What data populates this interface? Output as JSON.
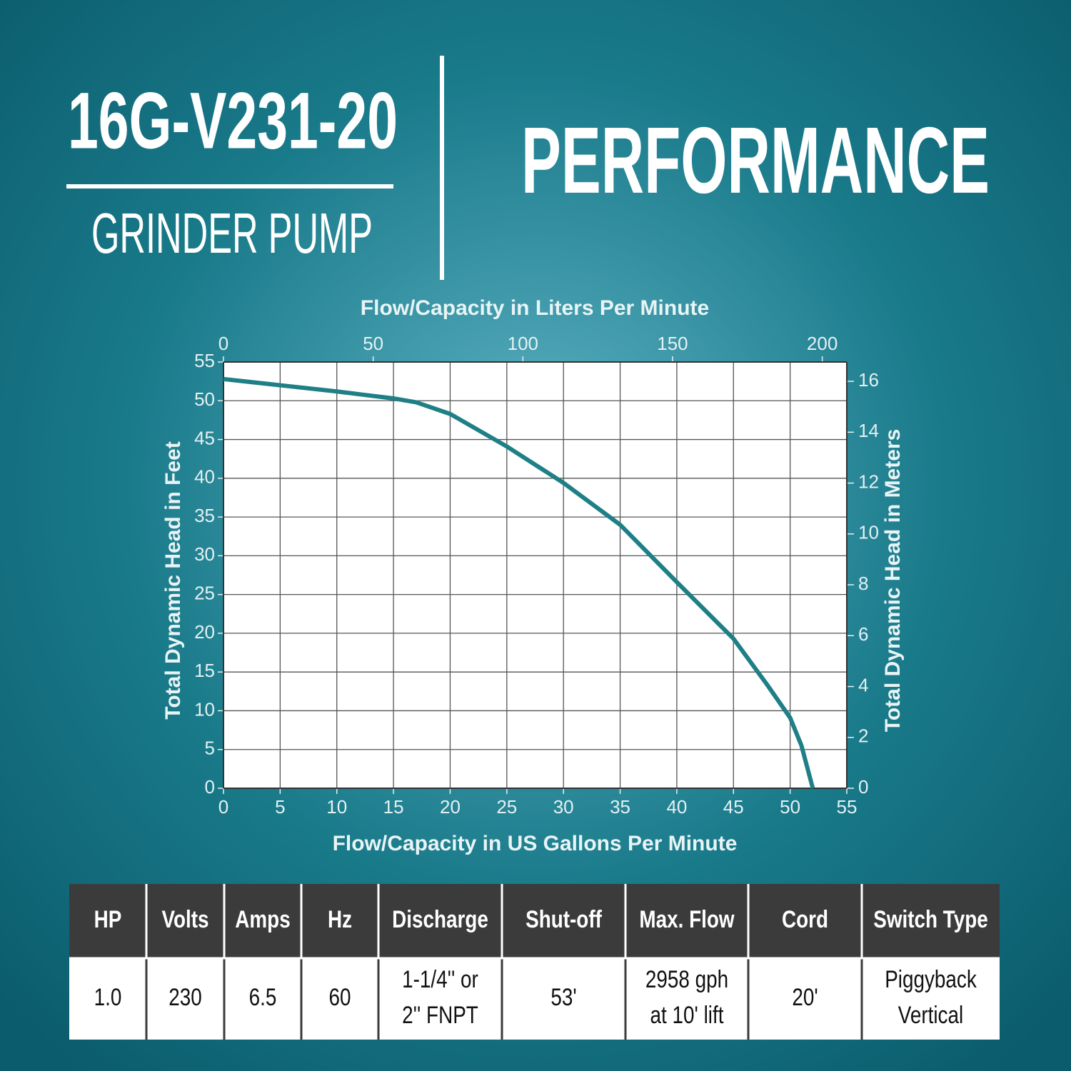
{
  "header": {
    "model": "16G-V231-20",
    "subtitle": "GRINDER PUMP",
    "heading": "PERFORMANCE"
  },
  "chart_data": {
    "type": "line",
    "x_label": "Flow/Capacity in US Gallons Per Minute",
    "x2_label": "Flow/Capacity in Liters Per Minute",
    "y_label": "Total Dynamic Head in Feet",
    "y2_label": "Total Dynamic Head in Meters",
    "x": [
      0,
      5,
      10,
      15,
      17,
      20,
      25,
      30,
      35,
      40,
      45,
      48,
      50,
      51,
      52
    ],
    "values": [
      52.8,
      52,
      51.2,
      50.3,
      49.8,
      48.3,
      44.1,
      39.4,
      34,
      26.6,
      19.3,
      13.3,
      9.1,
      5.5,
      0
    ],
    "color": "#1f7f86",
    "xlim": [
      0,
      55
    ],
    "xticks": [
      0,
      5,
      10,
      15,
      20,
      25,
      30,
      35,
      40,
      45,
      50,
      55
    ],
    "ylim": [
      0,
      55
    ],
    "yticks": [
      0,
      5,
      10,
      15,
      20,
      25,
      30,
      35,
      40,
      45,
      50,
      55
    ],
    "x2lim": [
      0,
      208.2
    ],
    "x2ticks": [
      0,
      50,
      100,
      150,
      200
    ],
    "y2lim": [
      0,
      16.76
    ],
    "y2ticks": [
      0,
      2,
      4,
      6,
      8,
      10,
      12,
      14,
      16
    ],
    "grid": true
  },
  "table": {
    "columns": [
      "HP",
      "Volts",
      "Amps",
      "Hz",
      "Discharge",
      "Shut-off",
      "Max. Flow",
      "Cord",
      "Switch Type"
    ],
    "rows": [
      [
        [
          "1.0"
        ],
        [
          "230"
        ],
        [
          "6.5"
        ],
        [
          "60"
        ],
        [
          "1-1/4'' or",
          "2'' FNPT"
        ],
        [
          "53'"
        ],
        [
          "2958 gph",
          "at 10' lift"
        ],
        [
          "20'"
        ],
        [
          "Piggyback",
          "Vertical"
        ]
      ]
    ]
  }
}
